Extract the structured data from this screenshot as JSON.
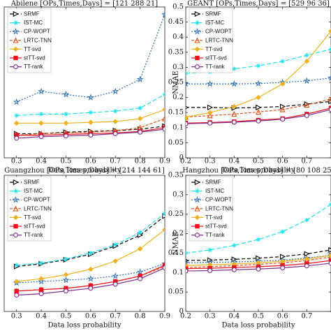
{
  "chart_data": [
    {
      "type": "line",
      "title": "Abilene [OPs,Times,Days] = [121   288   21]",
      "xlabel": "Data loss probability",
      "ylabel": "",
      "xlim": [
        0.25,
        0.9
      ],
      "ylim": [
        0.0,
        1.0
      ],
      "x_ticks": [
        "0.3",
        "0.4",
        "0.5",
        "0.6",
        "0.7",
        "0.8",
        "0.9"
      ],
      "y_ticks": [],
      "grid": false,
      "legend": "top-left",
      "x": [
        0.3,
        0.4,
        0.5,
        0.6,
        0.7,
        0.8,
        0.9
      ],
      "series": [
        {
          "name": "SRMF",
          "values": [
            0.16,
            0.16,
            0.17,
            0.175,
            0.18,
            0.19,
            0.21
          ]
        },
        {
          "name": "IST-MC",
          "values": [
            0.28,
            0.29,
            0.29,
            0.3,
            0.31,
            0.33,
            0.42
          ]
        },
        {
          "name": "CP-WOPT",
          "values": [
            0.37,
            0.44,
            0.42,
            0.4,
            0.44,
            0.52,
            0.95
          ]
        },
        {
          "name": "LRTC-TNN",
          "values": [
            0.15,
            0.16,
            0.165,
            0.17,
            0.18,
            0.2,
            0.26
          ]
        },
        {
          "name": "TT-svd",
          "values": [
            0.23,
            0.23,
            0.23,
            0.235,
            0.24,
            0.26,
            0.32
          ]
        },
        {
          "name": "stTT-svd",
          "values": [
            0.15,
            0.15,
            0.155,
            0.16,
            0.165,
            0.175,
            0.2
          ]
        },
        {
          "name": "TT-rank",
          "values": [
            0.13,
            0.14,
            0.145,
            0.15,
            0.16,
            0.17,
            0.19
          ]
        }
      ]
    },
    {
      "type": "line",
      "title": "GEANT [OPs,Times,Days] = [529   96   36]",
      "xlabel": "Data loss probability",
      "ylabel": "NMAE",
      "xlim": [
        0.2,
        0.8
      ],
      "ylim": [
        0.0,
        0.5
      ],
      "x_ticks": [
        "0.2",
        "0.3",
        "0.4",
        "0.5",
        "0.6",
        "0.7"
      ],
      "y_ticks": [
        "0",
        "0.05",
        "0.1",
        "0.15",
        "0.2",
        "0.25",
        "0.3",
        "0.35",
        "0.4",
        "0.45",
        "0.5"
      ],
      "grid": false,
      "legend": "top-left",
      "x": [
        0.2,
        0.3,
        0.4,
        0.5,
        0.6,
        0.7,
        0.8
      ],
      "series": [
        {
          "name": "SRMF",
          "values": [
            0.167,
            0.167,
            0.165,
            0.167,
            0.17,
            0.178,
            0.187
          ]
        },
        {
          "name": "IST-MC",
          "values": [
            0.28,
            0.285,
            0.295,
            0.305,
            0.32,
            0.34,
            0.36
          ]
        },
        {
          "name": "CP-WOPT",
          "values": [
            0.245,
            0.245,
            0.245,
            0.246,
            0.25,
            0.255,
            0.265
          ]
        },
        {
          "name": "LRTC-TNN",
          "values": [
            0.135,
            0.14,
            0.145,
            0.152,
            0.16,
            0.175,
            0.195
          ]
        },
        {
          "name": "TT-svd",
          "values": [
            0.135,
            0.15,
            0.17,
            0.2,
            0.245,
            0.32,
            0.42
          ]
        },
        {
          "name": "stTT-svd",
          "values": [
            0.115,
            0.117,
            0.12,
            0.125,
            0.13,
            0.145,
            0.165
          ]
        },
        {
          "name": "TT-rank",
          "values": [
            0.113,
            0.115,
            0.118,
            0.122,
            0.128,
            0.14,
            0.16
          ]
        }
      ]
    },
    {
      "type": "line",
      "title": "Guangzhou [OPs,Times,Days] = [214   144   61]",
      "xlabel": "Data loss probability",
      "ylabel": "",
      "xlim": [
        0.25,
        0.9
      ],
      "ylim": [
        0.0,
        1.0
      ],
      "x_ticks": [
        "0.3",
        "0.4",
        "0.5",
        "0.6",
        "0.7",
        "0.8",
        "0.9"
      ],
      "y_ticks": [],
      "grid": false,
      "legend": "top-left",
      "x": [
        0.3,
        0.4,
        0.5,
        0.6,
        0.7,
        0.8,
        0.9
      ],
      "series": [
        {
          "name": "SRMF",
          "values": [
            0.33,
            0.35,
            0.38,
            0.42,
            0.48,
            0.56,
            0.7
          ]
        },
        {
          "name": "IST-MC",
          "values": [
            0.34,
            0.355,
            0.385,
            0.43,
            0.49,
            0.58,
            0.72
          ]
        },
        {
          "name": "CP-WOPT",
          "values": [
            0.21,
            0.22,
            0.23,
            0.24,
            0.26,
            0.29,
            0.35
          ]
        },
        {
          "name": "LRTC-TNN",
          "values": [
            0.15,
            0.16,
            0.17,
            0.19,
            0.22,
            0.26,
            0.33
          ]
        },
        {
          "name": "TT-svd",
          "values": [
            0.22,
            0.24,
            0.27,
            0.31,
            0.37,
            0.46,
            0.6
          ]
        },
        {
          "name": "stTT-svd",
          "values": [
            0.15,
            0.16,
            0.17,
            0.19,
            0.22,
            0.26,
            0.34
          ]
        },
        {
          "name": "TT-rank",
          "values": [
            0.12,
            0.13,
            0.15,
            0.17,
            0.2,
            0.24,
            0.32
          ]
        }
      ]
    },
    {
      "type": "line",
      "title": "Hangzhou [OPs,Times,Days] = [80   108   25]",
      "xlabel": "Data loss probability",
      "ylabel": "NMAE",
      "xlim": [
        0.2,
        0.8
      ],
      "ylim": [
        0.0,
        0.35
      ],
      "x_ticks": [
        "0.2",
        "0.3",
        "0.4",
        "0.5",
        "0.6",
        "0.7"
      ],
      "y_ticks": [
        "0",
        "0.05",
        "0.1",
        "0.15",
        "0.2",
        "0.25",
        "0.3",
        "0.35"
      ],
      "grid": false,
      "legend": "top-left",
      "x": [
        0.2,
        0.3,
        0.4,
        0.5,
        0.6,
        0.7,
        0.8
      ],
      "series": [
        {
          "name": "SRMF",
          "values": [
            0.131,
            0.132,
            0.134,
            0.137,
            0.141,
            0.148,
            0.158
          ]
        },
        {
          "name": "IST-MC",
          "values": [
            0.15,
            0.158,
            0.17,
            0.185,
            0.205,
            0.235,
            0.275
          ]
        },
        {
          "name": "CP-WOPT",
          "values": [
            0.125,
            0.126,
            0.127,
            0.129,
            0.132,
            0.137,
            0.145
          ]
        },
        {
          "name": "LRTC-TNN",
          "values": [
            0.113,
            0.115,
            0.118,
            0.121,
            0.125,
            0.131,
            0.14
          ]
        },
        {
          "name": "TT-svd",
          "values": [
            0.118,
            0.12,
            0.122,
            0.125,
            0.129,
            0.135,
            0.144
          ]
        },
        {
          "name": "stTT-svd",
          "values": [
            0.11,
            0.111,
            0.113,
            0.115,
            0.118,
            0.123,
            0.131
          ]
        },
        {
          "name": "TT-rank",
          "values": [
            0.104,
            0.105,
            0.107,
            0.109,
            0.112,
            0.117,
            0.124
          ]
        }
      ]
    }
  ],
  "series_colors": {
    "SRMF": "#000000",
    "IST-MC": "#1ee0ee",
    "CP-WOPT": "#2f6fae",
    "LRTC-TNN": "#d9541a",
    "TT-svd": "#edb120",
    "stTT-svd": "#e8131f",
    "TT-rank": "#7e2f8e"
  },
  "series_markers": {
    "SRMF": "triangle-right",
    "IST-MC": "asterisk",
    "CP-WOPT": "star",
    "LRTC-TNN": "triangle-up",
    "TT-svd": "diamond",
    "stTT-svd": "square",
    "TT-rank": "circle"
  }
}
